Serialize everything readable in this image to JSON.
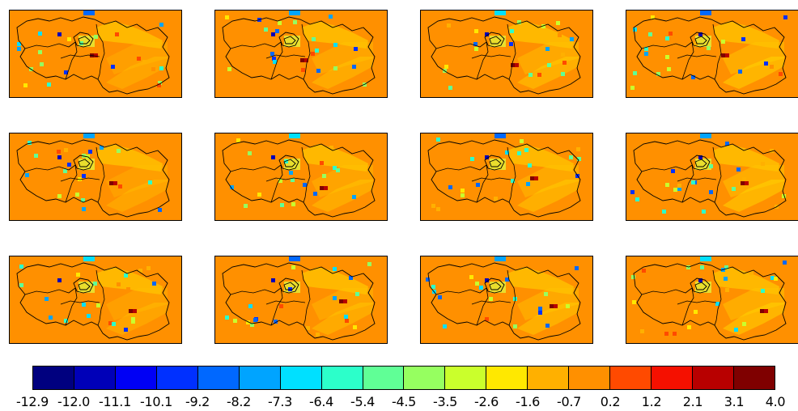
{
  "map": {
    "panel_count": 12,
    "background_color": "#ff9000",
    "boundary_color": "#000000",
    "colormap": "jet"
  },
  "colorbar": {
    "ticks": [
      "-12.9",
      "-12.0",
      "-11.1",
      "-10.1",
      "-9.2",
      "-8.2",
      "-7.3",
      "-6.4",
      "-5.4",
      "-4.5",
      "-3.5",
      "-2.6",
      "-1.6",
      "-0.7",
      "0.2",
      "1.2",
      "2.1",
      "3.1",
      "4.0"
    ],
    "colors": [
      "#00007f",
      "#0000b8",
      "#0000f5",
      "#0030ff",
      "#0068ff",
      "#00a4ff",
      "#00e0ff",
      "#2cffca",
      "#60ff96",
      "#96ff60",
      "#caff2c",
      "#ffe800",
      "#ffb000",
      "#ff9000",
      "#ff4a00",
      "#f51000",
      "#b80000",
      "#7f0000"
    ]
  }
}
